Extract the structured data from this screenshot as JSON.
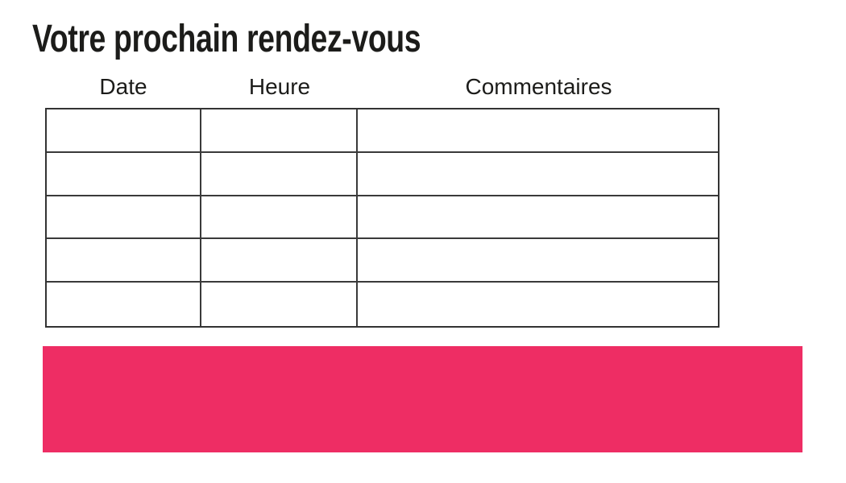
{
  "page": {
    "title": "Votre prochain rendez-vous",
    "background_color": "#ffffff",
    "text_color": "#1c1c1a"
  },
  "appointments_table": {
    "column_headers": [
      "Date",
      "Heure",
      "Commentaires"
    ],
    "rows": [
      [
        "",
        "",
        ""
      ],
      [
        "",
        "",
        ""
      ],
      [
        "",
        "",
        ""
      ],
      [
        "",
        "",
        ""
      ],
      [
        "",
        "",
        ""
      ]
    ],
    "border_color": "#3a3a3a"
  },
  "highlight_bar": {
    "color": "#ee2d64",
    "text": ""
  }
}
